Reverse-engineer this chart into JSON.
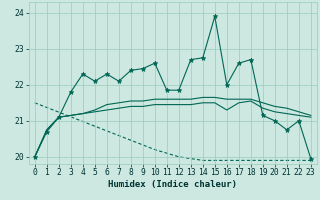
{
  "xlabel": "Humidex (Indice chaleur)",
  "xlim": [
    -0.5,
    23.5
  ],
  "ylim": [
    19.8,
    24.3
  ],
  "yticks": [
    20,
    21,
    22,
    23,
    24
  ],
  "xticks": [
    0,
    1,
    2,
    3,
    4,
    5,
    6,
    7,
    8,
    9,
    10,
    11,
    12,
    13,
    14,
    15,
    16,
    17,
    18,
    19,
    20,
    21,
    22,
    23
  ],
  "bg_color": "#cce8e0",
  "grid_color": "#99ccbb",
  "line_color": "#006655",
  "series_main": [
    20.0,
    20.7,
    21.1,
    21.8,
    22.3,
    22.1,
    22.3,
    22.1,
    22.4,
    22.45,
    22.6,
    21.85,
    21.85,
    22.7,
    22.75,
    23.9,
    22.0,
    22.6,
    22.7,
    21.15,
    21.0,
    20.75,
    21.0,
    19.95
  ],
  "series_curve1": [
    20.0,
    20.75,
    21.1,
    21.15,
    21.2,
    21.3,
    21.45,
    21.5,
    21.55,
    21.55,
    21.6,
    21.6,
    21.6,
    21.6,
    21.65,
    21.65,
    21.6,
    21.6,
    21.6,
    21.5,
    21.4,
    21.35,
    21.25,
    21.15
  ],
  "series_curve2": [
    20.0,
    20.75,
    21.1,
    21.15,
    21.2,
    21.25,
    21.3,
    21.35,
    21.4,
    21.4,
    21.45,
    21.45,
    21.45,
    21.45,
    21.5,
    21.5,
    21.3,
    21.5,
    21.55,
    21.35,
    21.25,
    21.2,
    21.15,
    21.1
  ],
  "series_dashed": [
    21.5,
    21.37,
    21.24,
    21.11,
    20.98,
    20.85,
    20.72,
    20.59,
    20.46,
    20.33,
    20.2,
    20.1,
    20.0,
    19.95,
    19.9,
    19.9,
    19.9,
    19.9,
    19.9,
    19.9,
    19.9,
    19.9,
    19.9,
    19.9
  ]
}
